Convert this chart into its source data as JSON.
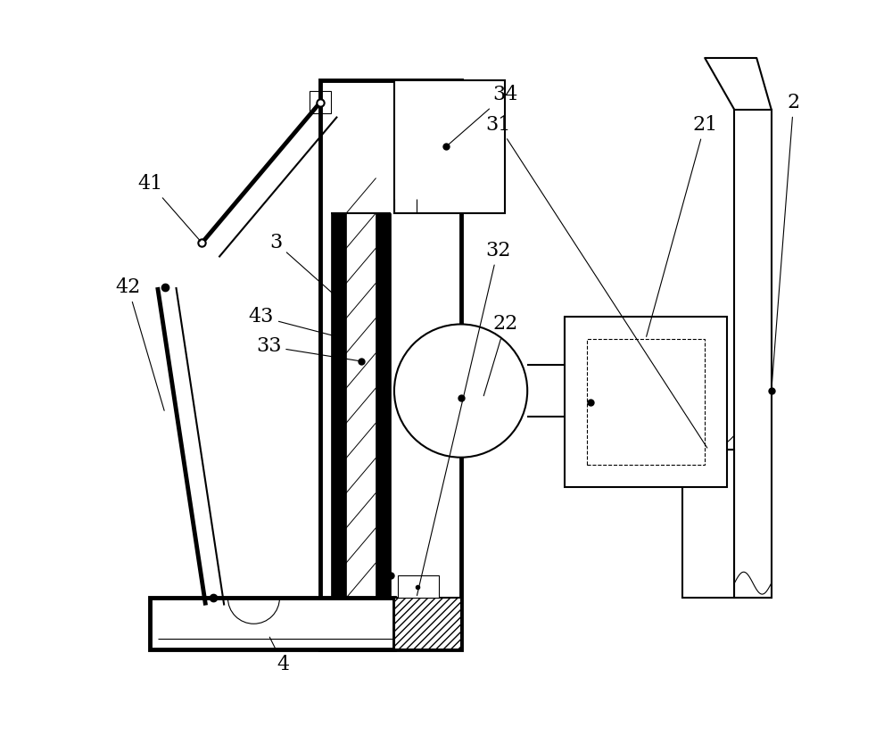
{
  "bg_color": "#ffffff",
  "line_color": "#000000",
  "label_fontsize": 16,
  "lw_thin": 0.8,
  "lw_med": 1.5,
  "lw_thick": 2.5,
  "lw_very_thick": 3.5
}
